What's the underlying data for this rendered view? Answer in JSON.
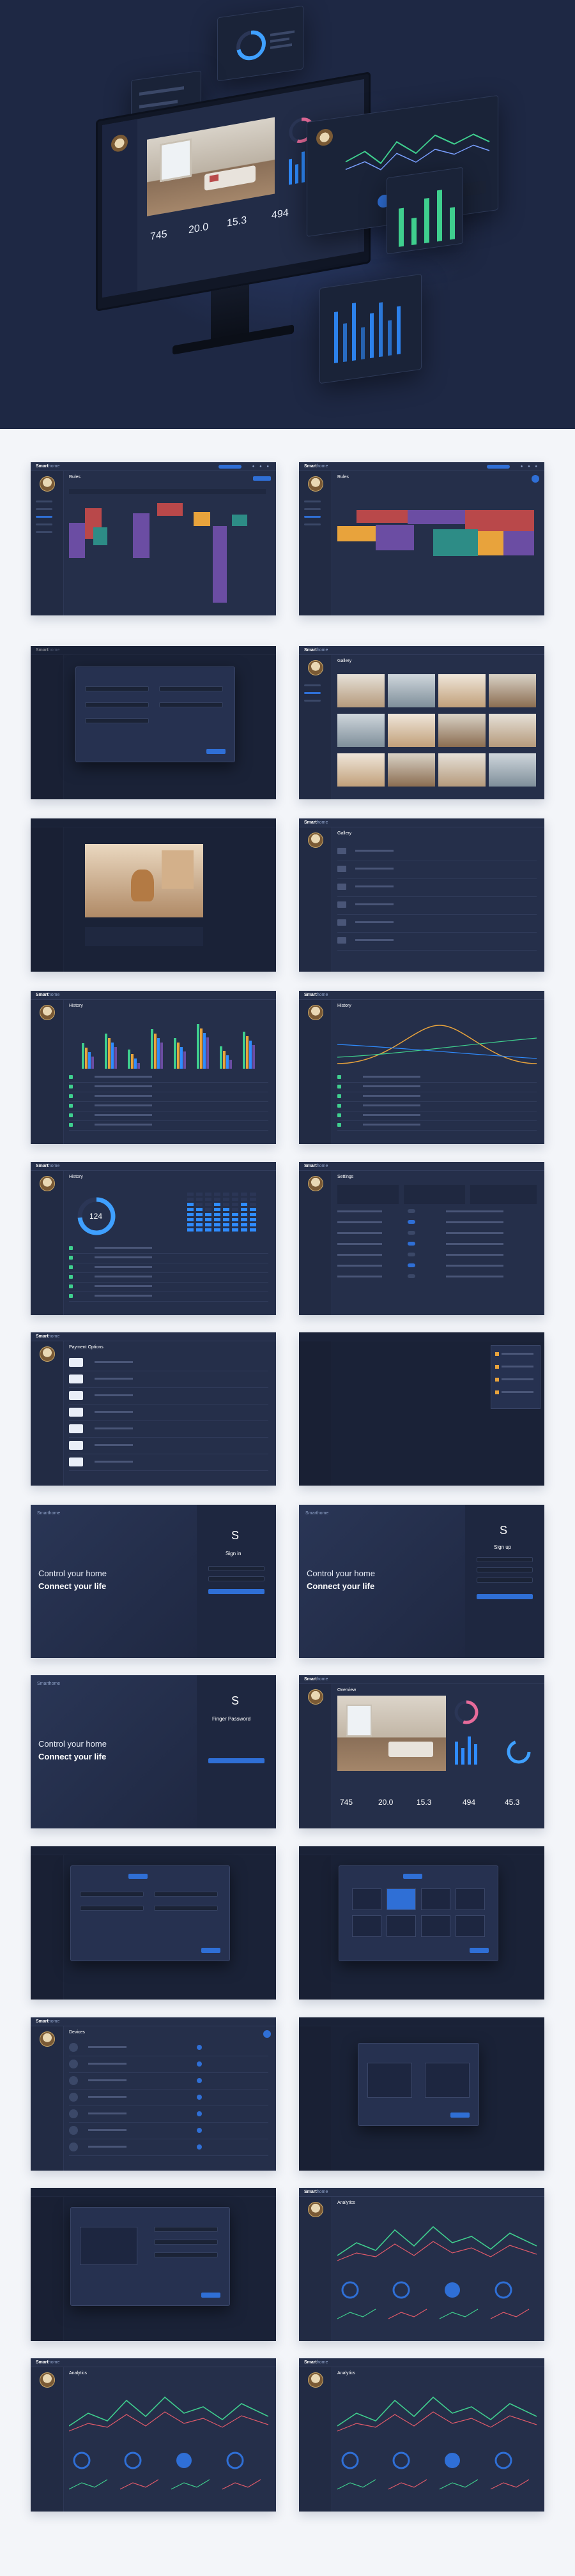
{
  "brand": {
    "name_bold": "Smart",
    "name_light": "home"
  },
  "colors": {
    "accent": "#2f6fd6",
    "background": "#252f4a",
    "hero_background": "#1e2844",
    "page_background": "#f3f5f9",
    "green": "#3fcf8e",
    "orange": "#e8a33c",
    "purple": "#6b4da3",
    "teal": "#2d8c86",
    "red": "#b9484a"
  },
  "icons": [
    "bell-icon",
    "gear-icon",
    "user-icon",
    "search-icon",
    "plus-icon",
    "folder-icon",
    "camera-icon",
    "fingerprint-icon"
  ],
  "hero": {
    "readouts": {
      "r1": "745",
      "r2": "20.0",
      "r3": "15.3",
      "r4": "494"
    },
    "ring_value": 0.72
  },
  "screens": {
    "rules": {
      "title": "Rules"
    },
    "gallery": {
      "title": "Gallery"
    },
    "history": {
      "title": "History",
      "ring_value": "124"
    },
    "settings": {
      "title": "Settings"
    },
    "payment": {
      "title": "Payment Options"
    },
    "auth": {
      "headline1": "Control your home",
      "headline2": "Connect your life",
      "logo_letter": "S",
      "sign_in": "Sign in",
      "sign_up": "Sign up",
      "finger": "Finger Password"
    },
    "overview": {
      "title": "Overview",
      "r1": "745",
      "r2": "20.0",
      "r3": "15.3",
      "r4": "494",
      "r5": "45.3"
    },
    "devices": {
      "title": "Devices"
    },
    "analytics": {
      "title": "Analytics"
    }
  }
}
